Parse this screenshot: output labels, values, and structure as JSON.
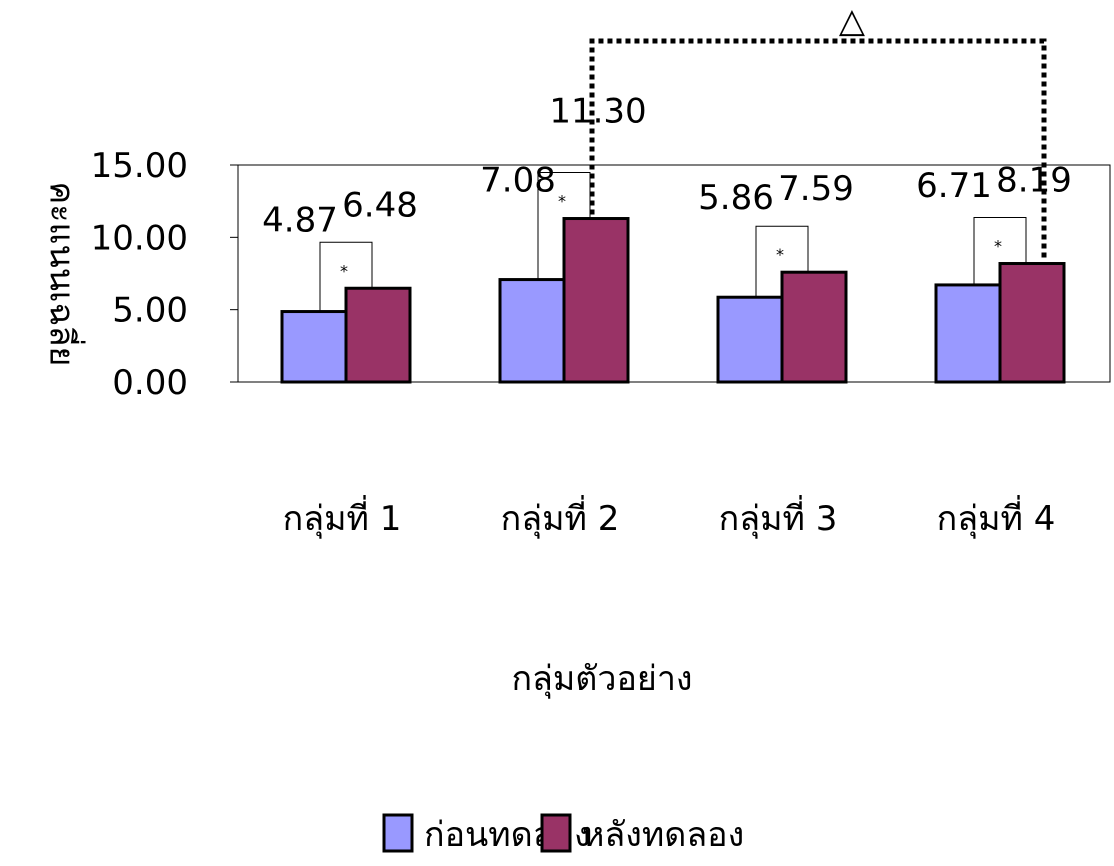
{
  "chart_data": {
    "type": "bar",
    "title": "",
    "xlabel": "กลุ่มตัวอย่าง",
    "ylabel": "คะแนนเฉลี่ย",
    "ylim": [
      0,
      15
    ],
    "yticks": [
      "0.00",
      "5.00",
      "10.00",
      "15.00"
    ],
    "categories": [
      "กลุ่มที่ 1",
      "กลุ่มที่ 2",
      "กลุ่มที่ 3",
      "กลุ่มที่ 4"
    ],
    "series": [
      {
        "name": "ก่อนทดลอง",
        "color": "#9999ff",
        "values": [
          4.87,
          7.08,
          5.86,
          6.71
        ],
        "labels": [
          "4.87",
          "7.08",
          "5.86",
          "6.71"
        ]
      },
      {
        "name": "หลังทดลอง",
        "color": "#993366",
        "values": [
          6.48,
          11.3,
          7.59,
          8.19
        ],
        "labels": [
          "6.48",
          "11.30",
          "7.59",
          "8.19"
        ]
      }
    ],
    "annotations": {
      "within_group_marker": "*",
      "between_group_marker": "△",
      "between_group_pair": [
        1,
        3
      ]
    },
    "legend_position": "bottom",
    "grid": false
  }
}
